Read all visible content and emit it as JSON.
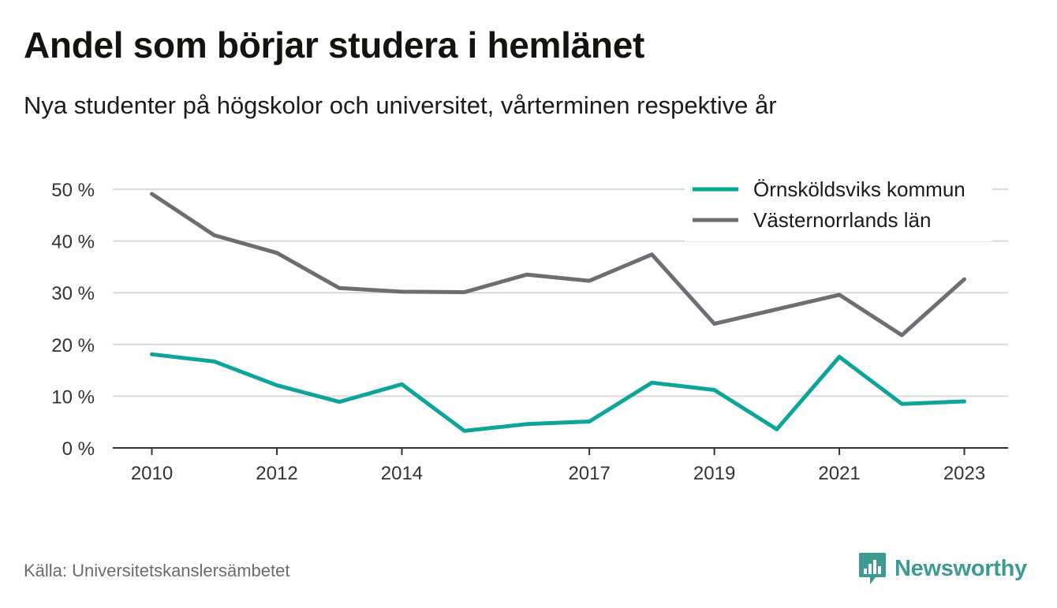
{
  "title": "Andel som börjar studera i hemlänet",
  "subtitle": "Nya studenter på högskolor och universitet, vårterminen respektive år",
  "source": "Källa: Universitetskanslersämbetet",
  "brand": {
    "name": "Newsworthy",
    "icon": "newsworthy-logo-icon",
    "color": "#3c9a92"
  },
  "chart_data": {
    "type": "line",
    "title": "",
    "xlabel": "",
    "ylabel": "",
    "x": [
      2010,
      2011,
      2012,
      2013,
      2014,
      2015,
      2016,
      2017,
      2018,
      2019,
      2020,
      2021,
      2022,
      2023
    ],
    "x_tick_labels": [
      "2010",
      "2012",
      "2014",
      "2017",
      "2019",
      "2021",
      "2023"
    ],
    "y_tick_labels": [
      "0 %",
      "10 %",
      "20 %",
      "30 %",
      "40 %",
      "50 %"
    ],
    "xlim": [
      2009.375,
      2023.7
    ],
    "ylim": [
      0,
      50
    ],
    "grid": true,
    "legend_position": "top-right",
    "series": [
      {
        "name": "Örnsköldsviks kommun",
        "color": "#0da49a",
        "values": [
          18.1,
          16.7,
          12.1,
          8.9,
          12.3,
          3.3,
          4.6,
          5.1,
          12.6,
          11.2,
          3.6,
          17.6,
          8.5,
          9.0
        ]
      },
      {
        "name": "Västernorrlands län",
        "color": "#6e6d73",
        "values": [
          49.1,
          41.1,
          37.7,
          30.9,
          30.2,
          30.1,
          33.5,
          32.3,
          37.4,
          24.0,
          26.8,
          29.6,
          21.8,
          32.6
        ]
      }
    ]
  }
}
